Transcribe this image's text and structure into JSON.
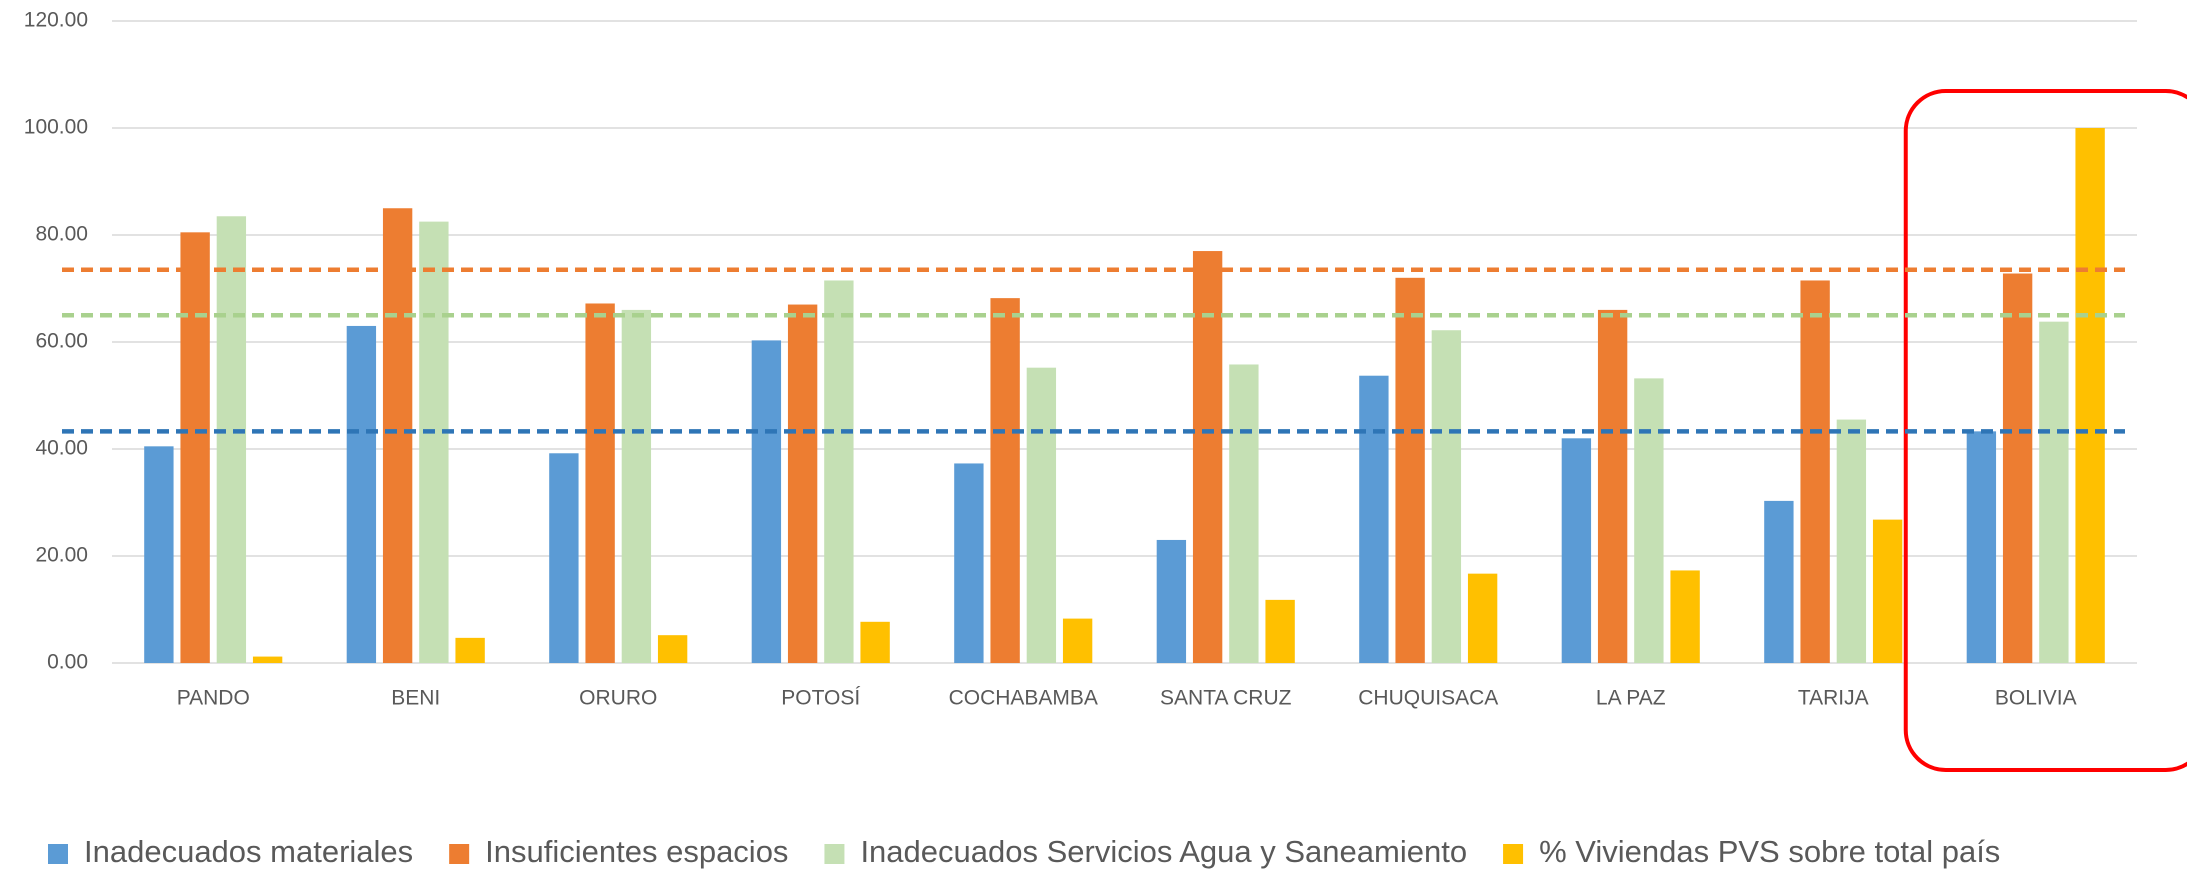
{
  "chart_data": {
    "type": "bar",
    "categories": [
      "PANDO",
      "BENI",
      "ORURO",
      "POTOSÍ",
      "COCHABAMBA",
      "SANTA CRUZ",
      "CHUQUISACA",
      "LA PAZ",
      "TARIJA",
      "BOLIVIA"
    ],
    "series": [
      {
        "name": "Inadecuados materiales",
        "color": "#5b9bd5",
        "values": [
          40.5,
          63.0,
          39.2,
          60.3,
          37.3,
          23.0,
          53.7,
          42.0,
          30.3,
          43.3
        ]
      },
      {
        "name": "Insuficientes espacios",
        "color": "#ed7d31",
        "values": [
          80.5,
          85.0,
          67.2,
          67.0,
          68.2,
          77.0,
          72.0,
          66.0,
          71.5,
          72.8
        ]
      },
      {
        "name": "Inadecuados Servicios Agua y Saneamiento",
        "color": "#c5e0b4",
        "values": [
          83.5,
          82.5,
          66.0,
          71.5,
          55.2,
          55.8,
          62.2,
          53.2,
          45.5,
          63.8
        ]
      },
      {
        "name": "% Viviendas PVS sobre total país",
        "color": "#ffc000",
        "values": [
          1.2,
          4.7,
          5.2,
          7.7,
          8.3,
          11.8,
          16.7,
          17.3,
          26.8,
          100.0
        ]
      }
    ],
    "reference_lines": [
      {
        "value": 73.5,
        "color": "#ed7d31"
      },
      {
        "value": 65.0,
        "color": "#a9d18e"
      },
      {
        "value": 43.3,
        "color": "#2e75b6"
      }
    ],
    "ylim": [
      0,
      120
    ],
    "yticks": [
      {
        "value": 0,
        "label": "0.00"
      },
      {
        "value": 20,
        "label": "20.00"
      },
      {
        "value": 40,
        "label": "40.00"
      },
      {
        "value": 60,
        "label": "60.00"
      },
      {
        "value": 80,
        "label": "80.00"
      },
      {
        "value": 100,
        "label": "100.00"
      },
      {
        "value": 120,
        "label": "120.00"
      }
    ],
    "grid": true,
    "legend": "bottom"
  }
}
